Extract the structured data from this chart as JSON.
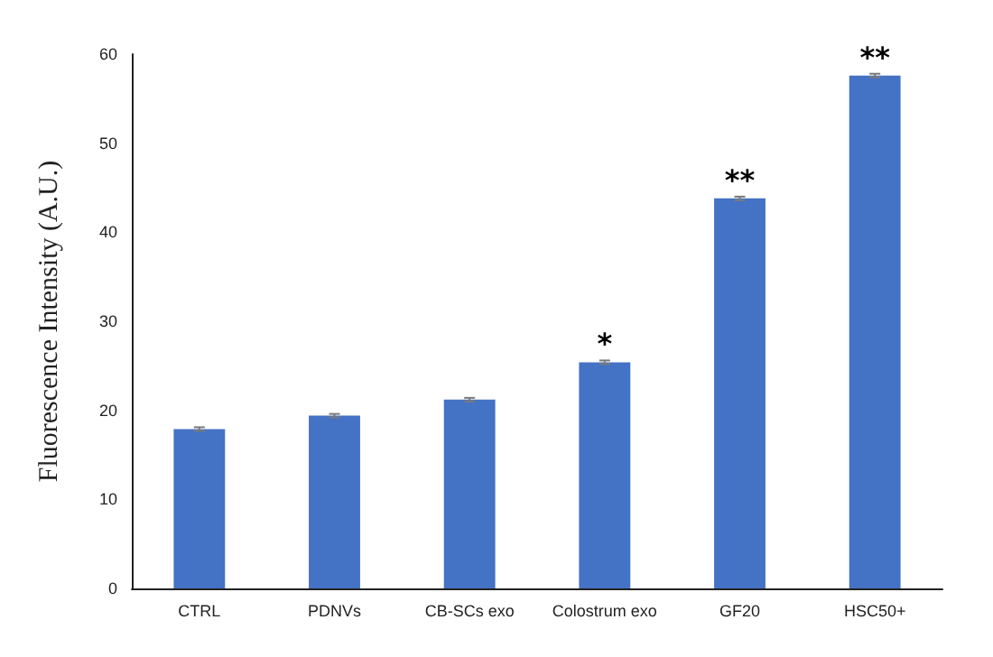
{
  "chart_data": {
    "type": "bar",
    "ylabel": "Fluorescence Intensity (A.U.)",
    "categories": [
      "CTRL",
      "PDNVs",
      "CB-SCs exo",
      "Colostrum exo",
      "GF20",
      "HSC50+"
    ],
    "values": [
      17.9,
      19.4,
      21.2,
      25.4,
      43.8,
      57.6
    ],
    "errors": [
      0.2,
      0.2,
      0.2,
      0.2,
      0.2,
      0.2
    ],
    "color": "#4472c4",
    "ylim": [
      0,
      60
    ],
    "yticks": [
      0,
      10,
      20,
      30,
      40,
      50,
      60
    ],
    "grid": false,
    "annotations": [
      {
        "text": "*",
        "x": "Colostrum exo",
        "y": 25.4
      },
      {
        "text": "**",
        "x": "GF20",
        "y": 43.8
      },
      {
        "text": "**",
        "x": "HSC50+",
        "y": 57.6
      }
    ]
  }
}
